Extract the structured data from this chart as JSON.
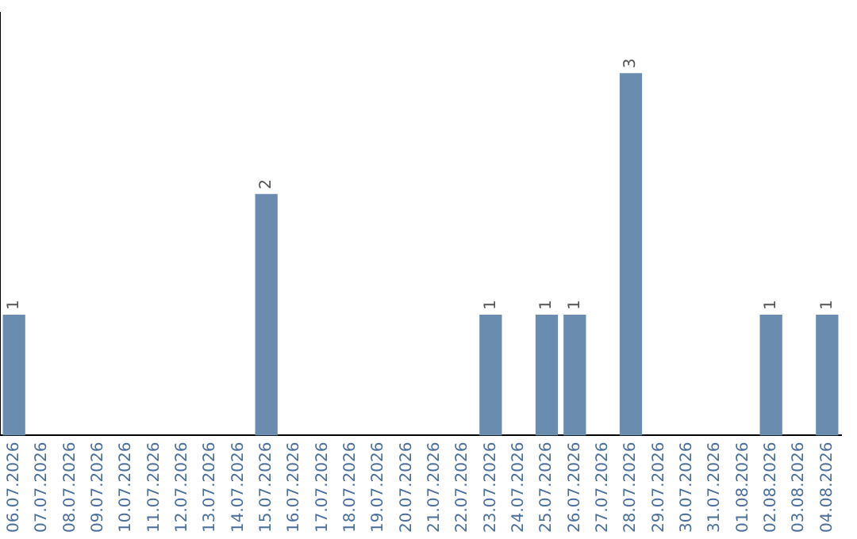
{
  "chart_data": {
    "type": "bar",
    "categories": [
      "06.07.2026",
      "07.07.2026",
      "08.07.2026",
      "09.07.2026",
      "10.07.2026",
      "11.07.2026",
      "12.07.2026",
      "13.07.2026",
      "14.07.2026",
      "15.07.2026",
      "16.07.2026",
      "17.07.2026",
      "18.07.2026",
      "19.07.2026",
      "20.07.2026",
      "21.07.2026",
      "22.07.2026",
      "23.07.2026",
      "24.07.2026",
      "25.07.2026",
      "26.07.2026",
      "27.07.2026",
      "28.07.2026",
      "29.07.2026",
      "30.07.2026",
      "31.07.2026",
      "01.08.2026",
      "02.08.2026",
      "03.08.2026",
      "04.08.2026"
    ],
    "values": [
      1,
      0,
      0,
      0,
      0,
      0,
      0,
      0,
      0,
      2,
      0,
      0,
      0,
      0,
      0,
      0,
      0,
      1,
      0,
      1,
      1,
      0,
      3,
      0,
      0,
      0,
      0,
      1,
      0,
      1
    ],
    "value_labels": [
      "1",
      null,
      null,
      null,
      null,
      null,
      null,
      null,
      null,
      "2",
      null,
      null,
      null,
      null,
      null,
      null,
      null,
      "1",
      null,
      "1",
      "1",
      null,
      "3",
      null,
      null,
      null,
      null,
      "1",
      null,
      "1"
    ],
    "color": "#6a8caf",
    "grid": false,
    "legend": false,
    "tick_labels": "x"
  }
}
